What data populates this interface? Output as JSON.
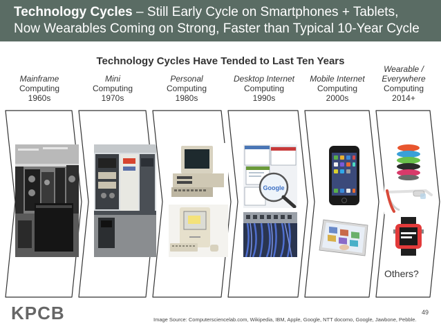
{
  "header": {
    "title_bold": "Technology Cycles",
    "title_rest": " – Still Early Cycle on Smartphones + Tablets,",
    "line2": "Now Wearables Coming on Strong, Faster than Typical 10-Year Cycle"
  },
  "subtitle": "Technology Cycles Have Tended to Last Ten Years",
  "cycles": [
    {
      "italic": "Mainframe",
      "line2": "Computing",
      "line3": "1960s"
    },
    {
      "italic": "Mini",
      "line2": "Computing",
      "line3": "1970s"
    },
    {
      "italic": "Personal",
      "line2": "Computing",
      "line3": "1980s"
    },
    {
      "italic": "Desktop Internet",
      "line2": "Computing",
      "line3": "1990s"
    },
    {
      "italic": "Mobile Internet",
      "line2": "Computing",
      "line3": "2000s"
    },
    {
      "italic": "Wearable /",
      "italic2": "Everywhere",
      "line2": "Computing",
      "line3": "2014+"
    }
  ],
  "others": "Others?",
  "logo": "KPCB",
  "source": "Image Source: Computersciencelab.com, Wikipedia, IBM, Apple, Google, NTT docomo, Google, Jawbone, Pebble.",
  "page_number": "49",
  "colors": {
    "header_bg": "#5a6c64",
    "chevron_stroke": "#333333"
  }
}
